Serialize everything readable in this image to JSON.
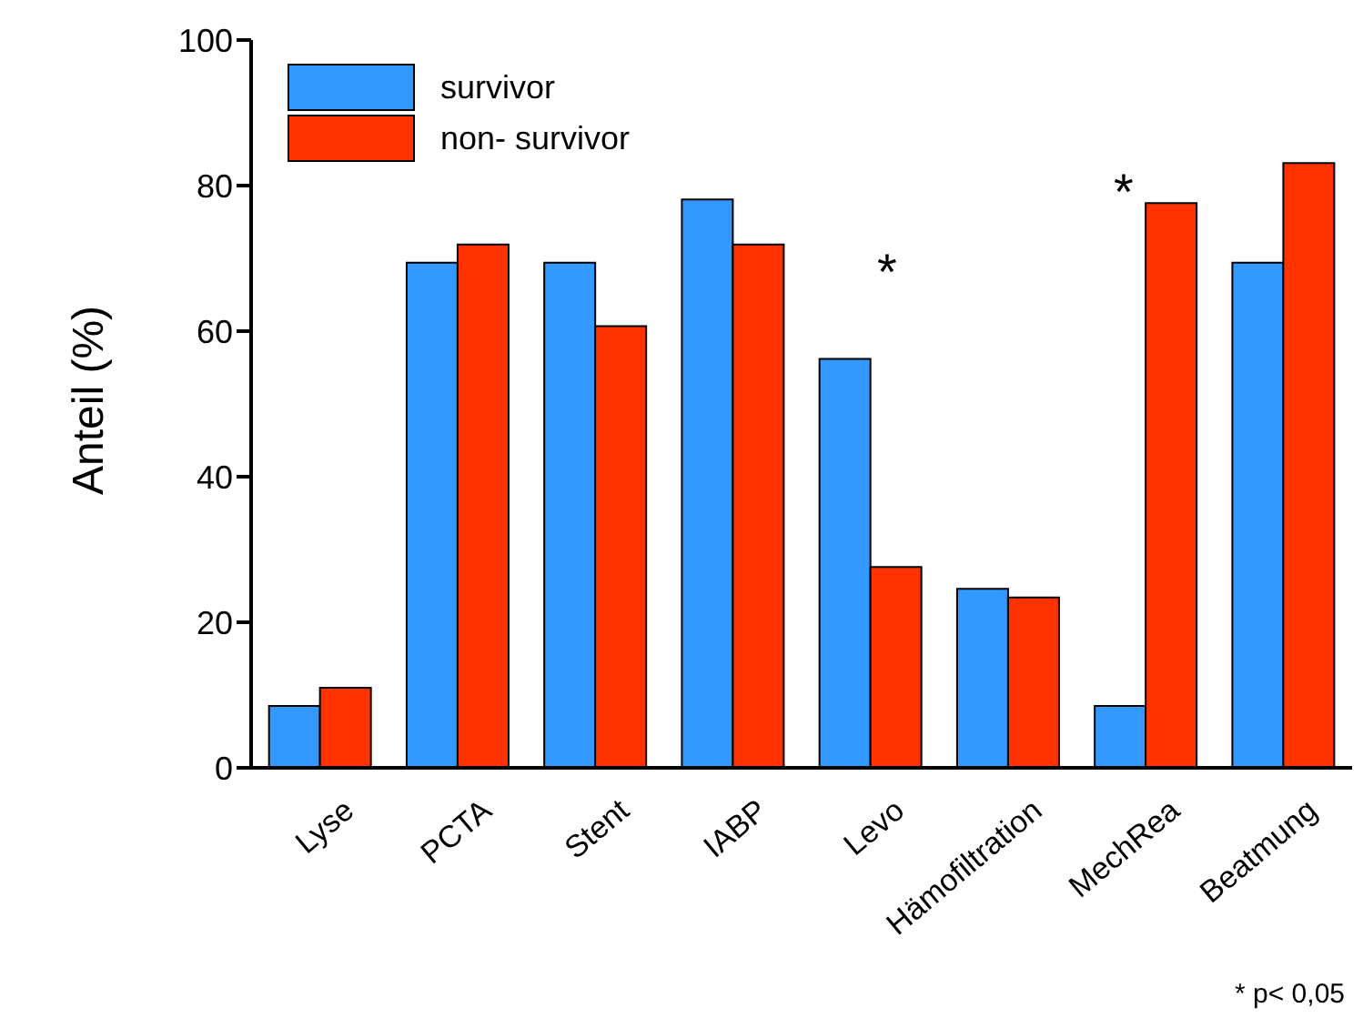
{
  "chart_data": {
    "type": "bar",
    "ylabel": "Anteil (%)",
    "categories": [
      "Lyse",
      "PCTA",
      "Stent",
      "IABP",
      "Levo",
      "Hämofiltration",
      "MechRea",
      "Beatmung"
    ],
    "series": [
      {
        "name": "survivor",
        "color": "#3399ff",
        "values": [
          8.5,
          69.4,
          69.4,
          78.1,
          56.2,
          24.6,
          8.5,
          69.4
        ]
      },
      {
        "name": "non- survivor",
        "color": "#ff3300",
        "values": [
          11,
          71.9,
          60.7,
          71.9,
          27.6,
          23.4,
          77.6,
          83.1
        ]
      }
    ],
    "ylim": [
      0,
      100
    ],
    "yticks": [
      0,
      20,
      40,
      60,
      80,
      100
    ],
    "grid": false,
    "legend": "top left",
    "annotations": [
      "*",
      "*",
      "* p< 0,05"
    ]
  }
}
